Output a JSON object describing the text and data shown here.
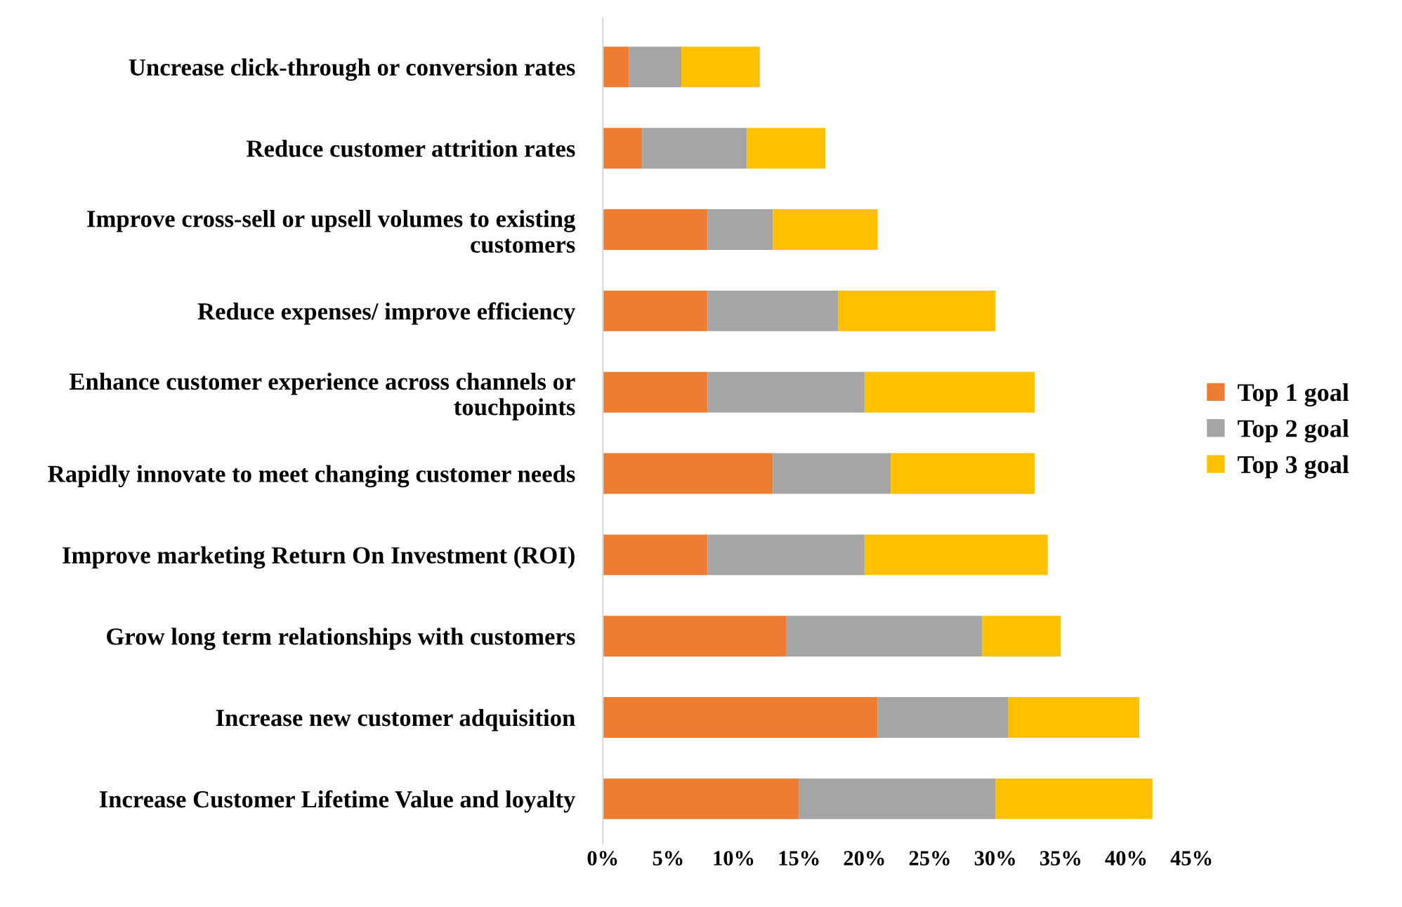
{
  "chart_data": {
    "type": "bar",
    "orientation": "horizontal",
    "stacked": true,
    "categories": [
      "Uncrease click-through or conversion rates",
      "Reduce customer attrition rates",
      "Improve cross-sell or upsell volumes to existing customers",
      "Reduce expenses/ improve efficiency",
      "Enhance customer experience across channels or touchpoints",
      "Rapidly innovate to meet changing customer needs",
      "Improve marketing Return On Investment (ROI)",
      "Grow long term relationships with customers",
      "Increase new customer adquisition",
      "Increase Customer Lifetime Value and loyalty"
    ],
    "series": [
      {
        "name": "Top 1 goal",
        "color": "#ed7d31",
        "values": [
          2,
          3,
          8,
          8,
          8,
          13,
          8,
          14,
          21,
          15
        ]
      },
      {
        "name": "Top 2 goal",
        "color": "#a5a5a5",
        "values": [
          4,
          8,
          5,
          10,
          12,
          9,
          12,
          15,
          10,
          15
        ]
      },
      {
        "name": "Top 3 goal",
        "color": "#ffc000",
        "values": [
          6,
          6,
          8,
          12,
          13,
          11,
          14,
          6,
          10,
          12
        ]
      }
    ],
    "xlim": [
      0,
      45
    ],
    "xticks": [
      {
        "value": 0,
        "label": "0%"
      },
      {
        "value": 5,
        "label": "5%"
      },
      {
        "value": 10,
        "label": "10%"
      },
      {
        "value": 15,
        "label": "15%"
      },
      {
        "value": 20,
        "label": "20%"
      },
      {
        "value": 25,
        "label": "25%"
      },
      {
        "value": 30,
        "label": "30%"
      },
      {
        "value": 35,
        "label": "35%"
      },
      {
        "value": 40,
        "label": "40%"
      },
      {
        "value": 45,
        "label": "45%"
      }
    ],
    "grid": false,
    "legend": "right"
  }
}
